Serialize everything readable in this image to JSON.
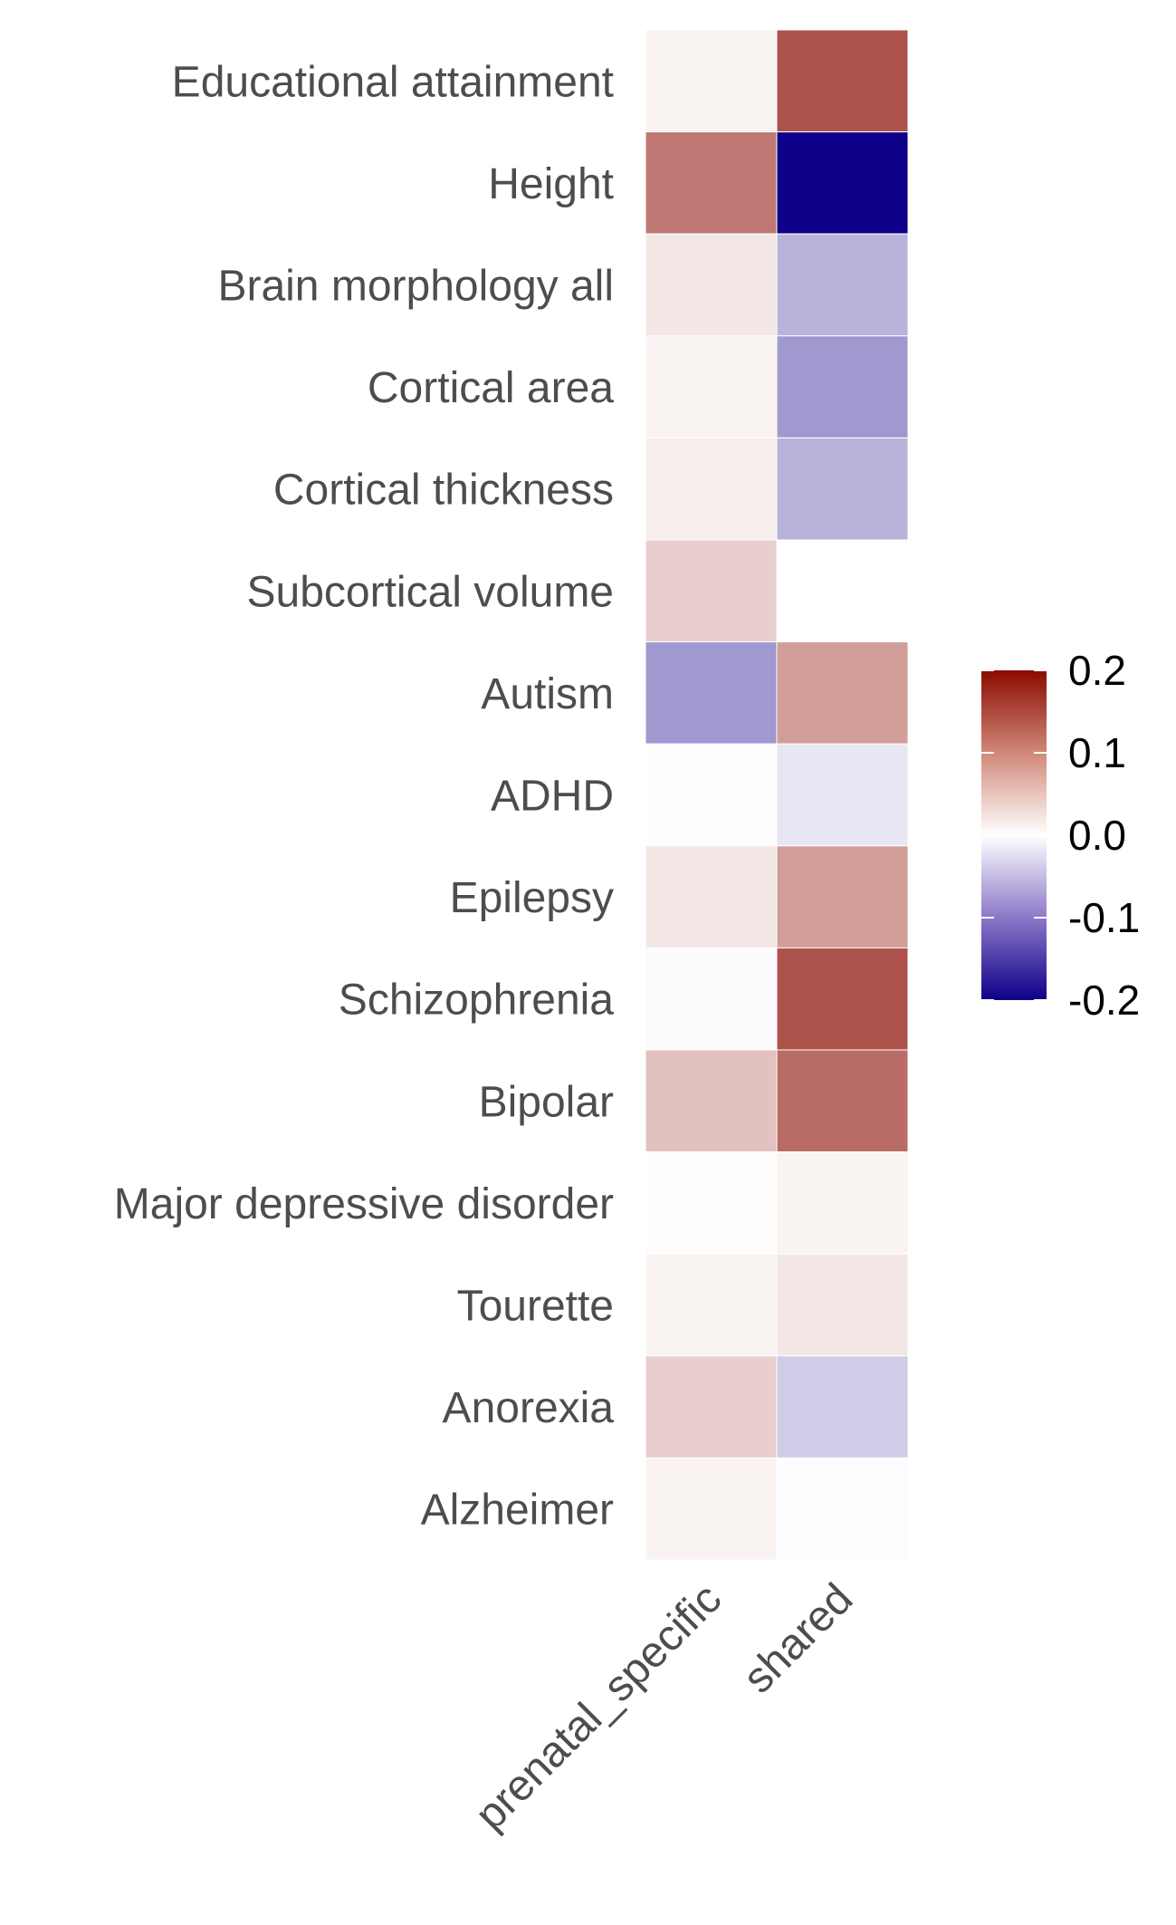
{
  "chart_data": {
    "type": "heatmap",
    "rows": [
      "Educational attainment",
      "Height",
      "Brain morphology all",
      "Cortical area",
      "Cortical thickness",
      "Subcortical volume",
      "Autism",
      "ADHD",
      "Epilepsy",
      "Schizophrenia",
      "Bipolar",
      "Major depressive disorder",
      "Tourette",
      "Anorexia",
      "Alzheimer"
    ],
    "columns": [
      "prenatal_specific",
      "shared"
    ],
    "values": [
      [
        0.01,
        0.14
      ],
      [
        0.11,
        -0.2
      ],
      [
        0.02,
        -0.06
      ],
      [
        0.01,
        -0.08
      ],
      [
        0.015,
        -0.06
      ],
      [
        0.04,
        0.0
      ],
      [
        -0.08,
        0.08
      ],
      [
        -0.002,
        -0.02
      ],
      [
        0.02,
        0.08
      ],
      [
        -0.003,
        0.14
      ],
      [
        0.05,
        0.12
      ],
      [
        0.002,
        0.01
      ],
      [
        0.01,
        0.02
      ],
      [
        0.04,
        -0.04
      ],
      [
        0.01,
        -0.002
      ]
    ],
    "color_scale": {
      "min": -0.2,
      "mid": 0.0,
      "max": 0.2,
      "low_color": "#0e0088",
      "mid_color": "#ffffff",
      "high_color": "#8b0a00"
    },
    "legend": {
      "position": "right",
      "ticks": [
        "0.2",
        "0.1",
        "0.0",
        "-0.1",
        "-0.2"
      ],
      "tick_values": [
        0.2,
        0.1,
        0.0,
        -0.1,
        -0.2
      ]
    },
    "title": "",
    "xlabel": "",
    "ylabel": ""
  }
}
